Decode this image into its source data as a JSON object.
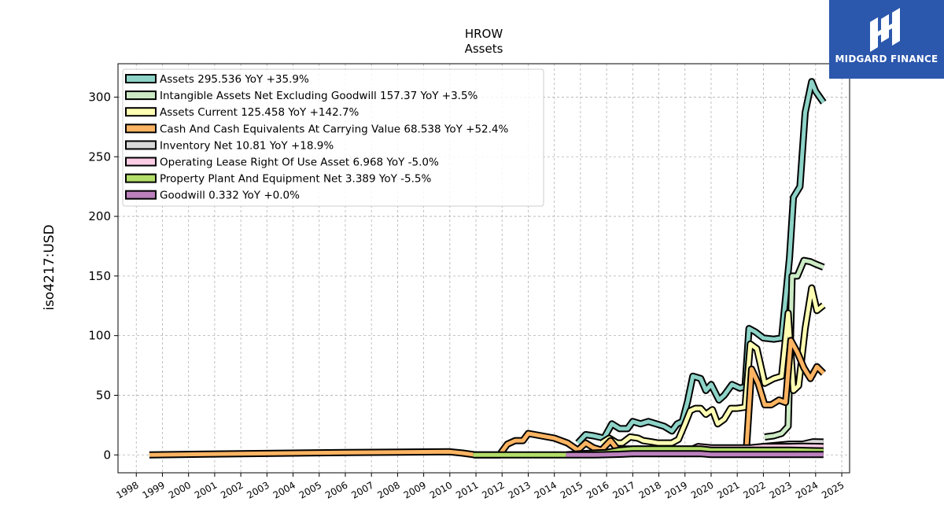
{
  "logo": {
    "text": "MIDGARD FINANCE"
  },
  "chart_data": {
    "type": "line",
    "title": "HROW",
    "subtitle": "Assets",
    "ylabel": "iso4217:USD",
    "xlabel": "",
    "xlim": [
      1997.3,
      2025.3
    ],
    "ylim": [
      -15,
      328
    ],
    "yticks": [
      0,
      50,
      100,
      150,
      200,
      250,
      300
    ],
    "xticks": [
      "1998",
      "1999",
      "2000",
      "2001",
      "2002",
      "2003",
      "2004",
      "2005",
      "2006",
      "2007",
      "2008",
      "2009",
      "2010",
      "2011",
      "2012",
      "2013",
      "2014",
      "2015",
      "2016",
      "2017",
      "2018",
      "2019",
      "2020",
      "2021",
      "2022",
      "2023",
      "2024",
      "2025"
    ],
    "grid": true,
    "legend_position": "top-left",
    "series": [
      {
        "name": "Assets",
        "legend": "Assets  295.536 YoY +35.9%",
        "color": "#8dd3c7",
        "points": [
          [
            2014.9,
            10
          ],
          [
            2015.2,
            17
          ],
          [
            2015.5,
            16
          ],
          [
            2015.9,
            14
          ],
          [
            2016.2,
            26
          ],
          [
            2016.5,
            22
          ],
          [
            2016.8,
            22
          ],
          [
            2017.0,
            28
          ],
          [
            2017.3,
            26
          ],
          [
            2017.6,
            28
          ],
          [
            2017.9,
            26
          ],
          [
            2018.2,
            24
          ],
          [
            2018.5,
            20
          ],
          [
            2018.7,
            26
          ],
          [
            2018.9,
            28
          ],
          [
            2019.1,
            45
          ],
          [
            2019.3,
            66
          ],
          [
            2019.6,
            64
          ],
          [
            2019.8,
            54
          ],
          [
            2020.0,
            59
          ],
          [
            2020.3,
            46
          ],
          [
            2020.5,
            50
          ],
          [
            2020.8,
            59
          ],
          [
            2021.1,
            56
          ],
          [
            2021.3,
            57
          ],
          [
            2021.45,
            106
          ],
          [
            2021.7,
            103
          ],
          [
            2022.0,
            98
          ],
          [
            2022.4,
            97
          ],
          [
            2022.7,
            98
          ],
          [
            2023.0,
            165
          ],
          [
            2023.15,
            216
          ],
          [
            2023.4,
            225
          ],
          [
            2023.6,
            287
          ],
          [
            2023.85,
            313
          ],
          [
            2024.0,
            305
          ],
          [
            2024.3,
            295.536
          ]
        ]
      },
      {
        "name": "Intangible Assets Net Excluding Goodwill",
        "legend": "Intangible Assets Net Excluding Goodwill  157.37 YoY +3.5%",
        "color": "#ccebc5",
        "points": [
          [
            2022.05,
            15
          ],
          [
            2022.4,
            16
          ],
          [
            2022.7,
            18
          ],
          [
            2022.95,
            24
          ],
          [
            2023.1,
            150
          ],
          [
            2023.3,
            150
          ],
          [
            2023.55,
            163
          ],
          [
            2023.8,
            162
          ],
          [
            2024.0,
            160
          ],
          [
            2024.3,
            157.37
          ]
        ]
      },
      {
        "name": "Assets Current",
        "legend": "Assets Current  125.458 YoY +142.7%",
        "color": "#ffffb3",
        "points": [
          [
            2015.8,
            10
          ],
          [
            2016.1,
            14
          ],
          [
            2016.4,
            10
          ],
          [
            2016.6,
            10
          ],
          [
            2016.9,
            15
          ],
          [
            2017.2,
            14
          ],
          [
            2017.4,
            12
          ],
          [
            2017.7,
            11
          ],
          [
            2017.95,
            10
          ],
          [
            2018.3,
            10
          ],
          [
            2018.5,
            10
          ],
          [
            2018.75,
            13
          ],
          [
            2019.0,
            26
          ],
          [
            2019.2,
            37
          ],
          [
            2019.4,
            39
          ],
          [
            2019.6,
            39
          ],
          [
            2019.8,
            34
          ],
          [
            2020.05,
            38
          ],
          [
            2020.25,
            26
          ],
          [
            2020.5,
            30
          ],
          [
            2020.75,
            39
          ],
          [
            2021.0,
            39
          ],
          [
            2021.3,
            40
          ],
          [
            2021.5,
            93
          ],
          [
            2021.75,
            89
          ],
          [
            2022.05,
            60
          ],
          [
            2022.4,
            64
          ],
          [
            2022.7,
            66
          ],
          [
            2022.95,
            119
          ],
          [
            2023.15,
            54
          ],
          [
            2023.35,
            58
          ],
          [
            2023.6,
            106
          ],
          [
            2023.85,
            140
          ],
          [
            2024.05,
            121
          ],
          [
            2024.3,
            125.458
          ]
        ]
      },
      {
        "name": "Cash And Cash Equivalents At Carrying Value",
        "legend": "Cash And Cash Equivalents At Carrying Value  68.538 YoY +52.4%",
        "color": "#fdb462",
        "points": [
          [
            1998.5,
            0
          ],
          [
            2002,
            1
          ],
          [
            2006,
            2
          ],
          [
            2009,
            2.5
          ],
          [
            2010.0,
            2.6
          ],
          [
            2010.5,
            1.5
          ],
          [
            2011.0,
            0
          ],
          [
            2011.9,
            0
          ],
          [
            2012.2,
            9
          ],
          [
            2012.5,
            12
          ],
          [
            2012.8,
            12
          ],
          [
            2013.0,
            18
          ],
          [
            2013.5,
            16
          ],
          [
            2014.0,
            14
          ],
          [
            2014.5,
            10
          ],
          [
            2014.9,
            4
          ],
          [
            2015.2,
            10
          ],
          [
            2015.5,
            6
          ],
          [
            2015.8,
            4
          ],
          [
            2016.15,
            12
          ],
          [
            2016.4,
            5
          ],
          [
            2016.7,
            5
          ],
          [
            2017.0,
            5
          ],
          [
            2018.0,
            5
          ],
          [
            2019.0,
            5
          ],
          [
            2020.0,
            5
          ],
          [
            2021.0,
            5
          ],
          [
            2021.35,
            5
          ],
          [
            2021.55,
            72
          ],
          [
            2021.8,
            60
          ],
          [
            2022.05,
            42
          ],
          [
            2022.3,
            42
          ],
          [
            2022.6,
            46
          ],
          [
            2022.85,
            44
          ],
          [
            2023.05,
            96
          ],
          [
            2023.3,
            86
          ],
          [
            2023.55,
            73
          ],
          [
            2023.8,
            64
          ],
          [
            2024.05,
            74
          ],
          [
            2024.3,
            68.538
          ]
        ]
      },
      {
        "name": "Inventory Net",
        "legend": "Inventory Net  10.81 YoY +18.9%",
        "color": "#d9d9d9",
        "points": [
          [
            2016.2,
            1
          ],
          [
            2017.0,
            2
          ],
          [
            2018.0,
            2
          ],
          [
            2019.0,
            3
          ],
          [
            2020.0,
            4
          ],
          [
            2021.0,
            5
          ],
          [
            2021.6,
            6
          ],
          [
            2022.0,
            7
          ],
          [
            2022.5,
            8
          ],
          [
            2023.0,
            9
          ],
          [
            2023.5,
            9
          ],
          [
            2023.9,
            11
          ],
          [
            2024.3,
            10.81
          ]
        ]
      },
      {
        "name": "Operating Lease Right Of Use Asset",
        "legend": "Operating Lease Right Of Use Asset  6.968 YoY -5.0%",
        "color": "#fccde5",
        "points": [
          [
            2019.1,
            3
          ],
          [
            2019.5,
            7
          ],
          [
            2020.0,
            6
          ],
          [
            2020.5,
            6
          ],
          [
            2021.0,
            6
          ],
          [
            2021.5,
            6
          ],
          [
            2022.0,
            7
          ],
          [
            2022.5,
            7
          ],
          [
            2023.0,
            7
          ],
          [
            2023.5,
            7.3
          ],
          [
            2024.0,
            7.1
          ],
          [
            2024.3,
            6.968
          ]
        ]
      },
      {
        "name": "Property Plant And Equipment Net",
        "legend": "Property Plant And Equipment Net  3.389 YoY -5.5%",
        "color": "#b3de69",
        "points": [
          [
            2010.9,
            0
          ],
          [
            2012.0,
            0
          ],
          [
            2013.0,
            0
          ],
          [
            2014.0,
            0
          ],
          [
            2014.4,
            0
          ],
          [
            2015.0,
            1
          ],
          [
            2016.0,
            2
          ],
          [
            2016.5,
            4
          ],
          [
            2017.0,
            5
          ],
          [
            2018.0,
            5
          ],
          [
            2019.0,
            5
          ],
          [
            2019.6,
            5
          ],
          [
            2020.0,
            4
          ],
          [
            2021.0,
            4
          ],
          [
            2022.0,
            4
          ],
          [
            2023.0,
            4
          ],
          [
            2024.0,
            3.5
          ],
          [
            2024.3,
            3.389
          ]
        ]
      },
      {
        "name": "Goodwill",
        "legend": "Goodwill  0.332 YoY +0.0%",
        "color": "#bc80bd",
        "points": [
          [
            2014.45,
            0
          ],
          [
            2015.5,
            0
          ],
          [
            2016.5,
            0.5
          ],
          [
            2017.0,
            1
          ],
          [
            2018.0,
            1
          ],
          [
            2019.0,
            1
          ],
          [
            2019.6,
            1
          ],
          [
            2020.0,
            0.3
          ],
          [
            2021.0,
            0.3
          ],
          [
            2022.0,
            0.3
          ],
          [
            2023.0,
            0.3
          ],
          [
            2024.3,
            0.332
          ]
        ]
      }
    ]
  }
}
